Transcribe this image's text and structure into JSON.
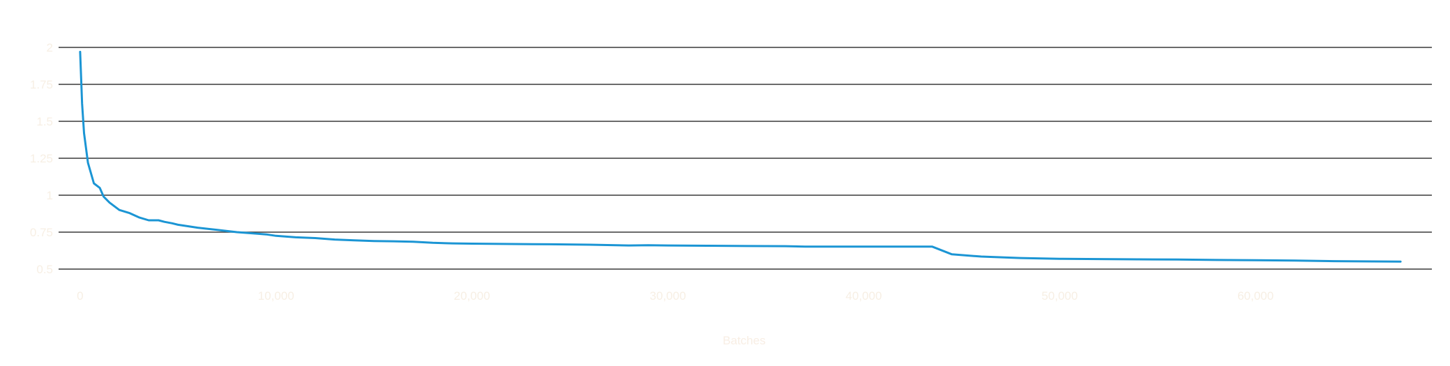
{
  "chart_data": {
    "type": "line",
    "title": "",
    "xlabel": "Batches",
    "ylabel": "",
    "xlim": [
      -1100,
      69000
    ],
    "ylim": [
      0.5,
      2
    ],
    "grid": true,
    "legend": "none",
    "x_ticks": [
      {
        "value": 0,
        "label": "0"
      },
      {
        "value": 10000,
        "label": "10,000"
      },
      {
        "value": 20000,
        "label": "20,000"
      },
      {
        "value": 30000,
        "label": "30,000"
      },
      {
        "value": 40000,
        "label": "40,000"
      },
      {
        "value": 50000,
        "label": "50,000"
      },
      {
        "value": 60000,
        "label": "60,000"
      }
    ],
    "y_ticks": [
      {
        "value": 2,
        "label": "2"
      },
      {
        "value": 1.75,
        "label": "1.75"
      },
      {
        "value": 1.5,
        "label": "1.5"
      },
      {
        "value": 1.25,
        "label": "1.25"
      },
      {
        "value": 1,
        "label": "1"
      },
      {
        "value": 0.75,
        "label": "0.75"
      },
      {
        "value": 0.5,
        "label": "0.5"
      }
    ],
    "series": [
      {
        "color": "#1b95d4",
        "x": [
          0,
          100,
          200,
          400,
          700,
          1000,
          1200,
          1500,
          2000,
          2500,
          3000,
          3500,
          4000,
          4300,
          4700,
          5000,
          5500,
          6000,
          7000,
          8000,
          9000,
          9500,
          10000,
          11000,
          12000,
          13000,
          14000,
          15000,
          16000,
          17000,
          18000,
          19000,
          20000,
          22000,
          24000,
          26000,
          28000,
          29000,
          30000,
          32000,
          34000,
          36000,
          37000,
          38000,
          40000,
          42000,
          43500,
          44500,
          46000,
          48000,
          50000,
          52000,
          54000,
          56000,
          58000,
          60000,
          62000,
          64000,
          66000,
          67400
        ],
        "y": [
          1.97,
          1.62,
          1.42,
          1.22,
          1.08,
          1.05,
          0.99,
          0.95,
          0.9,
          0.88,
          0.85,
          0.83,
          0.83,
          0.82,
          0.81,
          0.8,
          0.79,
          0.78,
          0.765,
          0.75,
          0.74,
          0.735,
          0.725,
          0.715,
          0.71,
          0.7,
          0.695,
          0.69,
          0.688,
          0.685,
          0.678,
          0.674,
          0.672,
          0.67,
          0.668,
          0.665,
          0.66,
          0.662,
          0.66,
          0.658,
          0.656,
          0.655,
          0.652,
          0.652,
          0.652,
          0.652,
          0.652,
          0.6,
          0.585,
          0.575,
          0.57,
          0.568,
          0.566,
          0.565,
          0.562,
          0.56,
          0.558,
          0.554,
          0.552,
          0.551
        ]
      }
    ]
  }
}
